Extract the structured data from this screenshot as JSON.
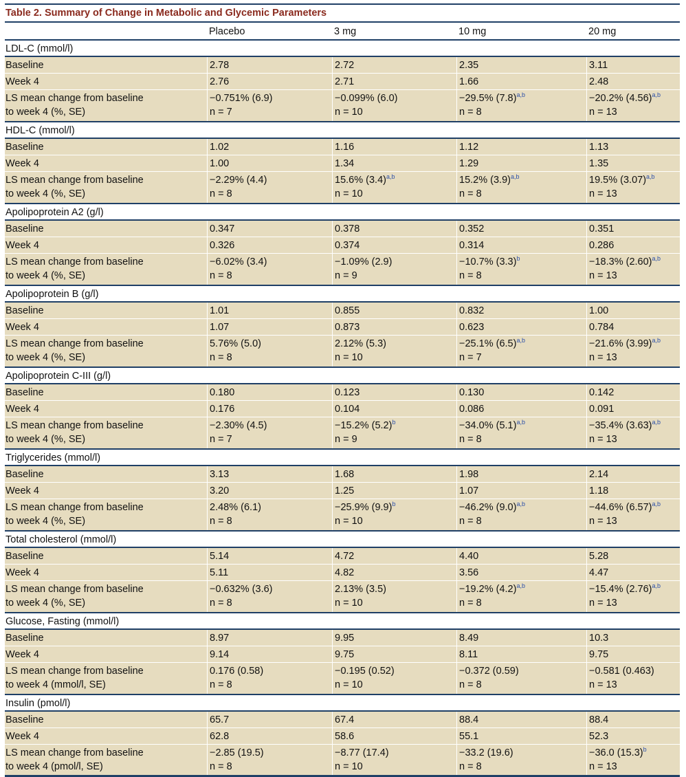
{
  "title": "Table 2.  Summary of Change in Metabolic and Glycemic Parameters",
  "columns": [
    "",
    "Placebo",
    "3 mg",
    "10 mg",
    "20 mg"
  ],
  "sections": [
    {
      "label": "LDL-C (mmol/l)",
      "rows": [
        {
          "label": "Baseline",
          "values": [
            "2.78",
            "2.72",
            "2.35",
            "3.11"
          ]
        },
        {
          "label": "Week 4",
          "values": [
            "2.76",
            "2.71",
            "1.66",
            "2.48"
          ]
        }
      ],
      "ls": {
        "label1": "LS mean change from baseline",
        "label2": "to week 4 (%, SE)",
        "values": [
          {
            "v": "−0.751% (6.9)",
            "sup": "",
            "n": "n = 7"
          },
          {
            "v": "−0.099% (6.0)",
            "sup": "",
            "n": "n = 10"
          },
          {
            "v": "−29.5% (7.8)",
            "sup": "a,b",
            "n": "n = 8"
          },
          {
            "v": "−20.2% (4.56)",
            "sup": "a,b",
            "n": "n = 13"
          }
        ]
      }
    },
    {
      "label": "HDL-C (mmol/l)",
      "rows": [
        {
          "label": "Baseline",
          "values": [
            "1.02",
            "1.16",
            "1.12",
            "1.13"
          ]
        },
        {
          "label": "Week 4",
          "values": [
            "1.00",
            "1.34",
            "1.29",
            "1.35"
          ]
        }
      ],
      "ls": {
        "label1": "LS mean change from baseline",
        "label2": "to week 4 (%, SE)",
        "values": [
          {
            "v": "−2.29% (4.4)",
            "sup": "",
            "n": "n = 8"
          },
          {
            "v": "15.6% (3.4)",
            "sup": "a,b",
            "n": "n = 10"
          },
          {
            "v": "15.2% (3.9)",
            "sup": "a,b",
            "n": "n = 8"
          },
          {
            "v": "19.5% (3.07)",
            "sup": "a,b",
            "n": "n = 13"
          }
        ]
      }
    },
    {
      "label": "Apolipoprotein A2 (g/l)",
      "rows": [
        {
          "label": "Baseline",
          "values": [
            "0.347",
            "0.378",
            "0.352",
            "0.351"
          ]
        },
        {
          "label": "Week 4",
          "values": [
            "0.326",
            "0.374",
            "0.314",
            "0.286"
          ]
        }
      ],
      "ls": {
        "label1": "LS mean change from baseline",
        "label2": "to week 4 (%, SE)",
        "values": [
          {
            "v": "−6.02% (3.4)",
            "sup": "",
            "n": "n = 8"
          },
          {
            "v": "−1.09% (2.9)",
            "sup": "",
            "n": "n = 9"
          },
          {
            "v": "−10.7% (3.3)",
            "sup": "b",
            "n": "n = 8"
          },
          {
            "v": "−18.3% (2.60)",
            "sup": "a,b",
            "n": "n = 13"
          }
        ]
      }
    },
    {
      "label": "Apolipoprotein B (g/l)",
      "rows": [
        {
          "label": "Baseline",
          "values": [
            "1.01",
            "0.855",
            "0.832",
            "1.00"
          ]
        },
        {
          "label": "Week 4",
          "values": [
            "1.07",
            "0.873",
            "0.623",
            "0.784"
          ]
        }
      ],
      "ls": {
        "label1": "LS mean change from baseline",
        "label2": "to week 4 (%, SE)",
        "values": [
          {
            "v": "5.76% (5.0)",
            "sup": "",
            "n": "n = 8"
          },
          {
            "v": "2.12% (5.3)",
            "sup": "",
            "n": "n = 10"
          },
          {
            "v": "−25.1% (6.5)",
            "sup": "a,b",
            "n": "n = 7"
          },
          {
            "v": "−21.6% (3.99)",
            "sup": "a,b",
            "n": "n = 13"
          }
        ]
      }
    },
    {
      "label": "Apolipoprotein C-III (g/l)",
      "rows": [
        {
          "label": "Baseline",
          "values": [
            "0.180",
            "0.123",
            "0.130",
            "0.142"
          ]
        },
        {
          "label": "Week 4",
          "values": [
            "0.176",
            "0.104",
            "0.086",
            "0.091"
          ]
        }
      ],
      "ls": {
        "label1": "LS mean change from baseline",
        "label2": "to week 4 (%, SE)",
        "values": [
          {
            "v": "−2.30% (4.5)",
            "sup": "",
            "n": "n = 7"
          },
          {
            "v": "−15.2% (5.2)",
            "sup": "b",
            "n": "n = 9"
          },
          {
            "v": "−34.0% (5.1)",
            "sup": "a,b",
            "n": "n = 8"
          },
          {
            "v": "−35.4% (3.63)",
            "sup": "a,b",
            "n": "n = 13"
          }
        ]
      }
    },
    {
      "label": "Triglycerides (mmol/l)",
      "rows": [
        {
          "label": "Baseline",
          "values": [
            "3.13",
            "1.68",
            "1.98",
            "2.14"
          ]
        },
        {
          "label": "Week 4",
          "values": [
            "3.20",
            "1.25",
            "1.07",
            "1.18"
          ]
        }
      ],
      "ls": {
        "label1": "LS mean change from baseline",
        "label2": "to week 4 (%, SE)",
        "values": [
          {
            "v": "2.48% (6.1)",
            "sup": "",
            "n": "n = 8"
          },
          {
            "v": "−25.9% (9.9)",
            "sup": "b",
            "n": "n = 10"
          },
          {
            "v": "−46.2% (9.0)",
            "sup": "a,b",
            "n": "n = 8"
          },
          {
            "v": "−44.6% (6.57)",
            "sup": "a,b",
            "n": "n = 13"
          }
        ]
      }
    },
    {
      "label": "Total cholesterol (mmol/l)",
      "rows": [
        {
          "label": "Baseline",
          "values": [
            "5.14",
            "4.72",
            "4.40",
            "5.28"
          ]
        },
        {
          "label": "Week 4",
          "values": [
            "5.11",
            "4.82",
            "3.56",
            "4.47"
          ]
        }
      ],
      "ls": {
        "label1": "LS mean change from baseline",
        "label2": "to week 4 (%, SE)",
        "values": [
          {
            "v": "−0.632% (3.6)",
            "sup": "",
            "n": "n = 8"
          },
          {
            "v": "2.13% (3.5)",
            "sup": "",
            "n": "n = 10"
          },
          {
            "v": "−19.2% (4.2)",
            "sup": "a,b",
            "n": "n = 8"
          },
          {
            "v": "−15.4% (2.76)",
            "sup": "a,b",
            "n": "n = 13"
          }
        ]
      }
    },
    {
      "label": "Glucose, Fasting (mmol/l)",
      "rows": [
        {
          "label": "Baseline",
          "values": [
            "8.97",
            "9.95",
            "8.49",
            "10.3"
          ]
        },
        {
          "label": "Week 4",
          "values": [
            "9.14",
            "9.75",
            "8.11",
            "9.75"
          ]
        }
      ],
      "ls": {
        "label1": "LS mean change from baseline",
        "label2": "to week 4 (mmol/l, SE)",
        "values": [
          {
            "v": "0.176 (0.58)",
            "sup": "",
            "n": "n = 8"
          },
          {
            "v": "−0.195 (0.52)",
            "sup": "",
            "n": "n = 10"
          },
          {
            "v": "−0.372 (0.59)",
            "sup": "",
            "n": "n = 8"
          },
          {
            "v": "−0.581 (0.463)",
            "sup": "",
            "n": "n = 13"
          }
        ]
      }
    },
    {
      "label": "Insulin (pmol/l)",
      "rows": [
        {
          "label": "Baseline",
          "values": [
            "65.7",
            "67.4",
            "88.4",
            "88.4"
          ]
        },
        {
          "label": "Week 4",
          "values": [
            "62.8",
            "58.6",
            "55.1",
            "52.3"
          ]
        }
      ],
      "ls": {
        "label1": "LS mean change from baseline",
        "label2": "to week 4 (pmol/l, SE)",
        "values": [
          {
            "v": "−2.85 (19.5)",
            "sup": "",
            "n": "n = 8"
          },
          {
            "v": "−8.77 (17.4)",
            "sup": "",
            "n": "n = 10"
          },
          {
            "v": "−33.2 (19.6)",
            "sup": "",
            "n": "n = 8"
          },
          {
            "v": "−36.0 (15.3)",
            "sup": "b",
            "n": "n = 13"
          }
        ]
      }
    }
  ]
}
